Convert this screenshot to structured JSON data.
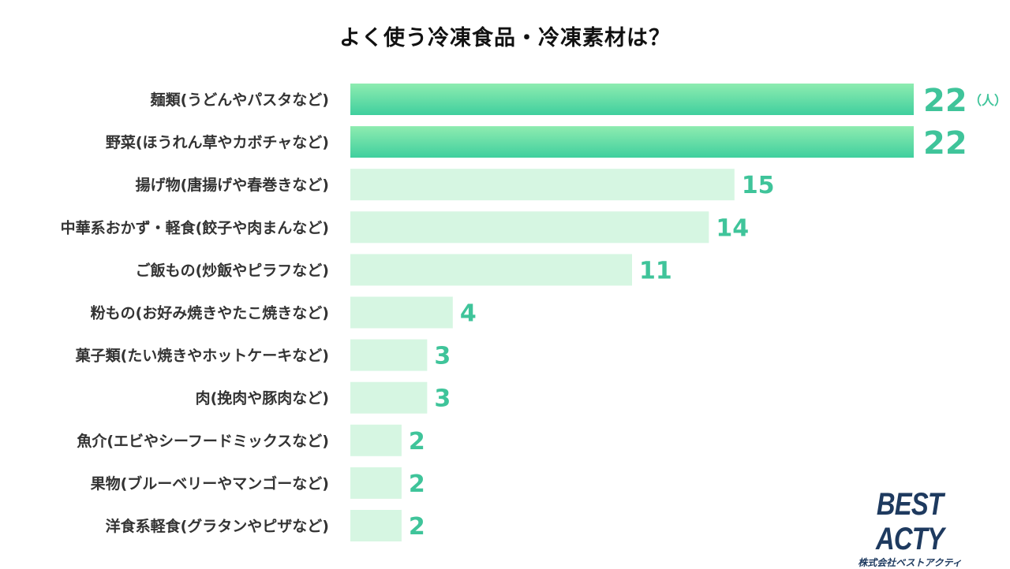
{
  "chart_data": {
    "type": "bar",
    "orientation": "horizontal",
    "title": "よく使う冷凍食品・冷凍素材は？",
    "unit_label": "（人）",
    "categories": [
      "麺類(うどんやパスタなど)",
      "野菜(ほうれん草やカボチャなど)",
      "揚げ物(唐揚げや春巻きなど)",
      "中華系おかず・軽食(餃子や肉まんなど)",
      "ご飯もの(炒飯やピラフなど)",
      "粉もの(お好み焼きやたこ焼きなど)",
      "菓子類(たい焼きやホットケーキなど)",
      "肉(挽肉や豚肉など)",
      "魚介(エビやシーフードミックスなど)",
      "果物(ブルーベリーやマンゴーなど)",
      "洋食系軽食(グラタンやピザなど)"
    ],
    "values": [
      22,
      22,
      15,
      14,
      11,
      4,
      3,
      3,
      2,
      2,
      2
    ],
    "highlighted": [
      true,
      true,
      false,
      false,
      false,
      false,
      false,
      false,
      false,
      false,
      false
    ],
    "xlim": [
      0,
      22
    ],
    "grid": false,
    "legend": "none"
  },
  "colors": {
    "highlight_top": "#8eecb0",
    "highlight_bottom": "#3fcf9e",
    "bar": "#d6f6e2",
    "value_text": "#3fc49a",
    "category_text": "#333333"
  },
  "logo": {
    "main": "BEST ACTY",
    "sub": "株式会社ベストアクティ"
  }
}
